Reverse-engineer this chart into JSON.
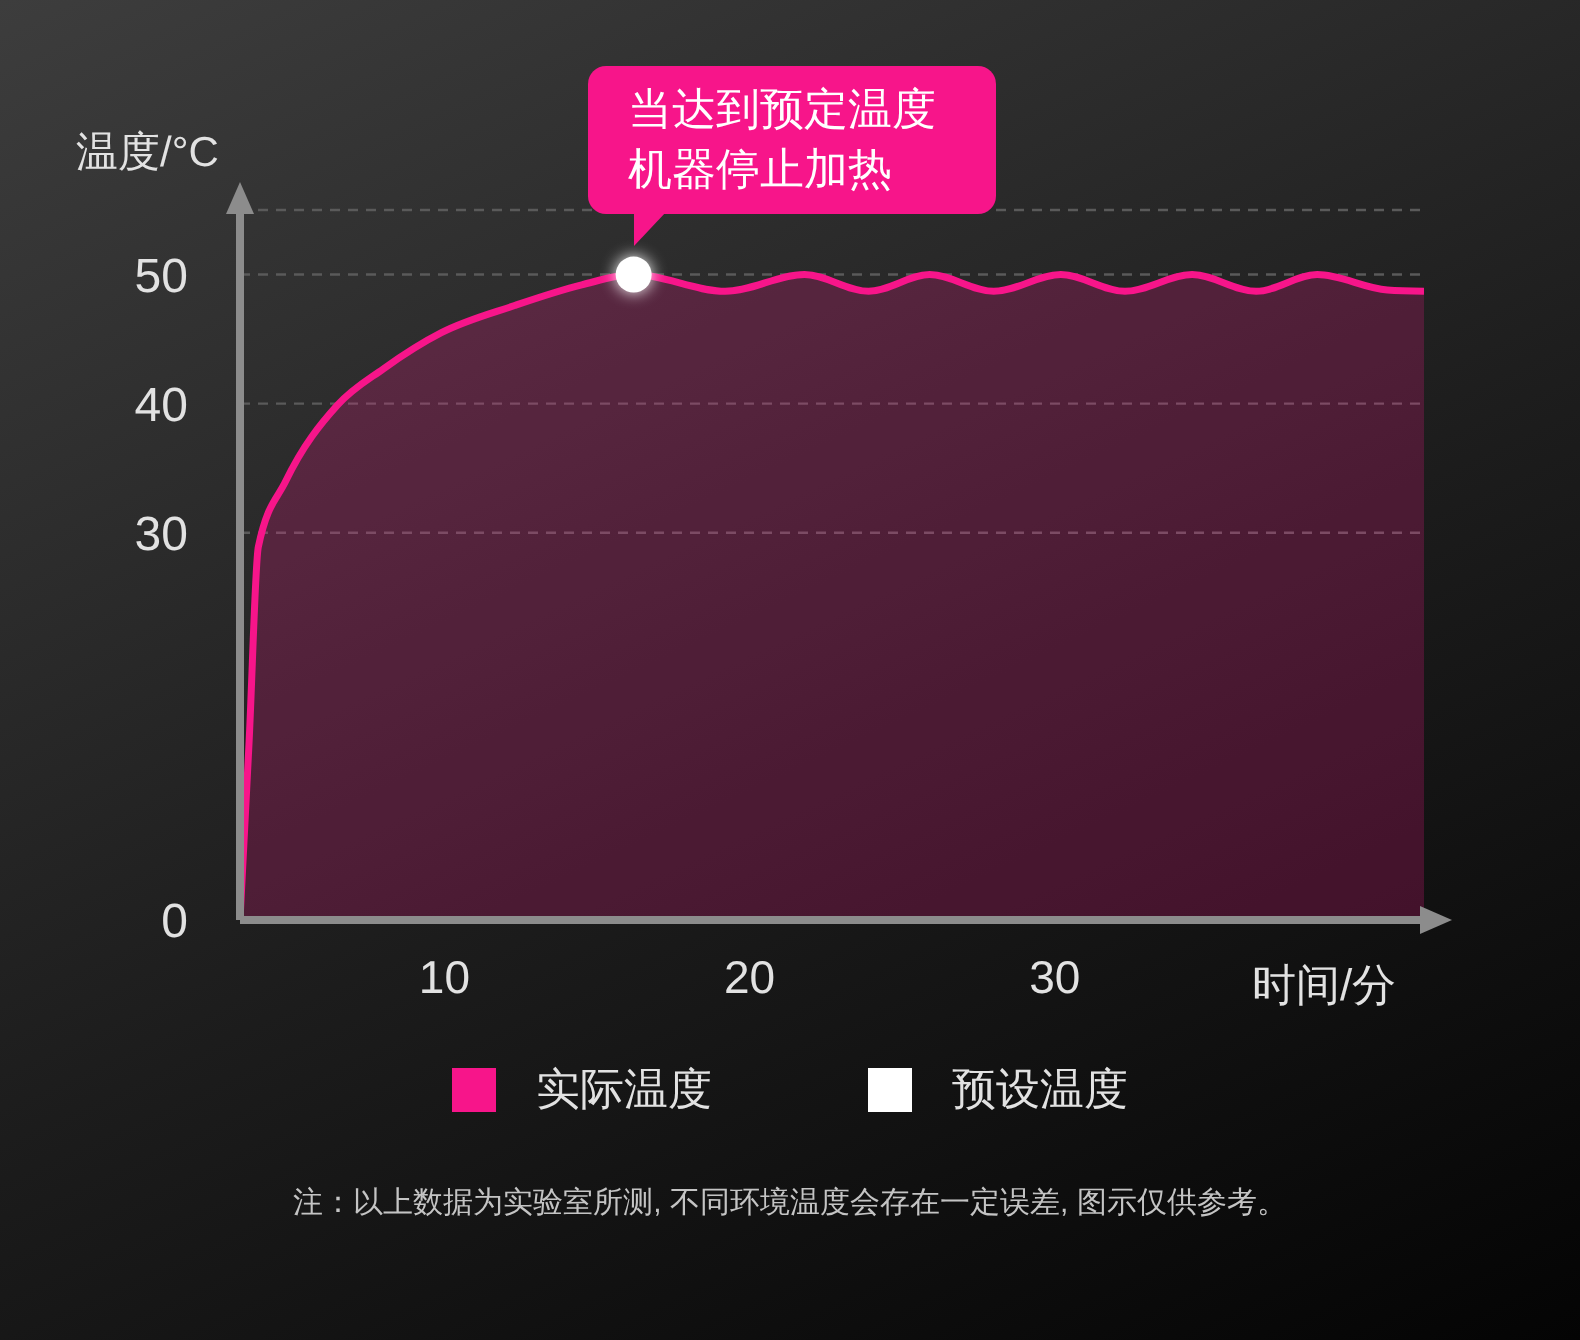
{
  "chart_data": {
    "type": "area",
    "xlabel": "时间/分",
    "ylabel": "温度/°C",
    "xlim": [
      3.3,
      42.1
    ],
    "xticks": [
      10,
      20,
      30
    ],
    "ylim": [
      0,
      55
    ],
    "yticks": [
      0,
      30,
      40,
      50
    ],
    "grid": "y",
    "legend": "bottom",
    "series": [
      {
        "name": "实际温度",
        "color": "#f7158a",
        "x": [
          3.3,
          3.6,
          3.9,
          4.8,
          6.5,
          8.0,
          9.9,
          12.3,
          14.5,
          16.2,
          19.2,
          21.8,
          23.9,
          25.9,
          28.0,
          30.2,
          32.3,
          34.5,
          36.6,
          38.6,
          40.9,
          42.1
        ],
        "values": [
          0,
          13.9,
          28.9,
          34.0,
          39.9,
          42.7,
          45.5,
          47.6,
          49.2,
          50,
          48.7,
          50,
          48.7,
          50,
          48.7,
          50,
          48.7,
          50,
          48.7,
          50,
          48.8,
          48.7
        ]
      },
      {
        "name": "预设温度",
        "type": "scatter",
        "color": "#ffffff",
        "marker": "circle",
        "x": [
          16.2
        ],
        "values": [
          50
        ]
      }
    ],
    "annotations": [
      {
        "text": "当达到预定温度机器停止加热",
        "x": 16.2,
        "y": 50
      },
      "注：以上数据为实验室所测, 不同环境温度会存在一定误差, 图示仅供参考。"
    ]
  }
}
